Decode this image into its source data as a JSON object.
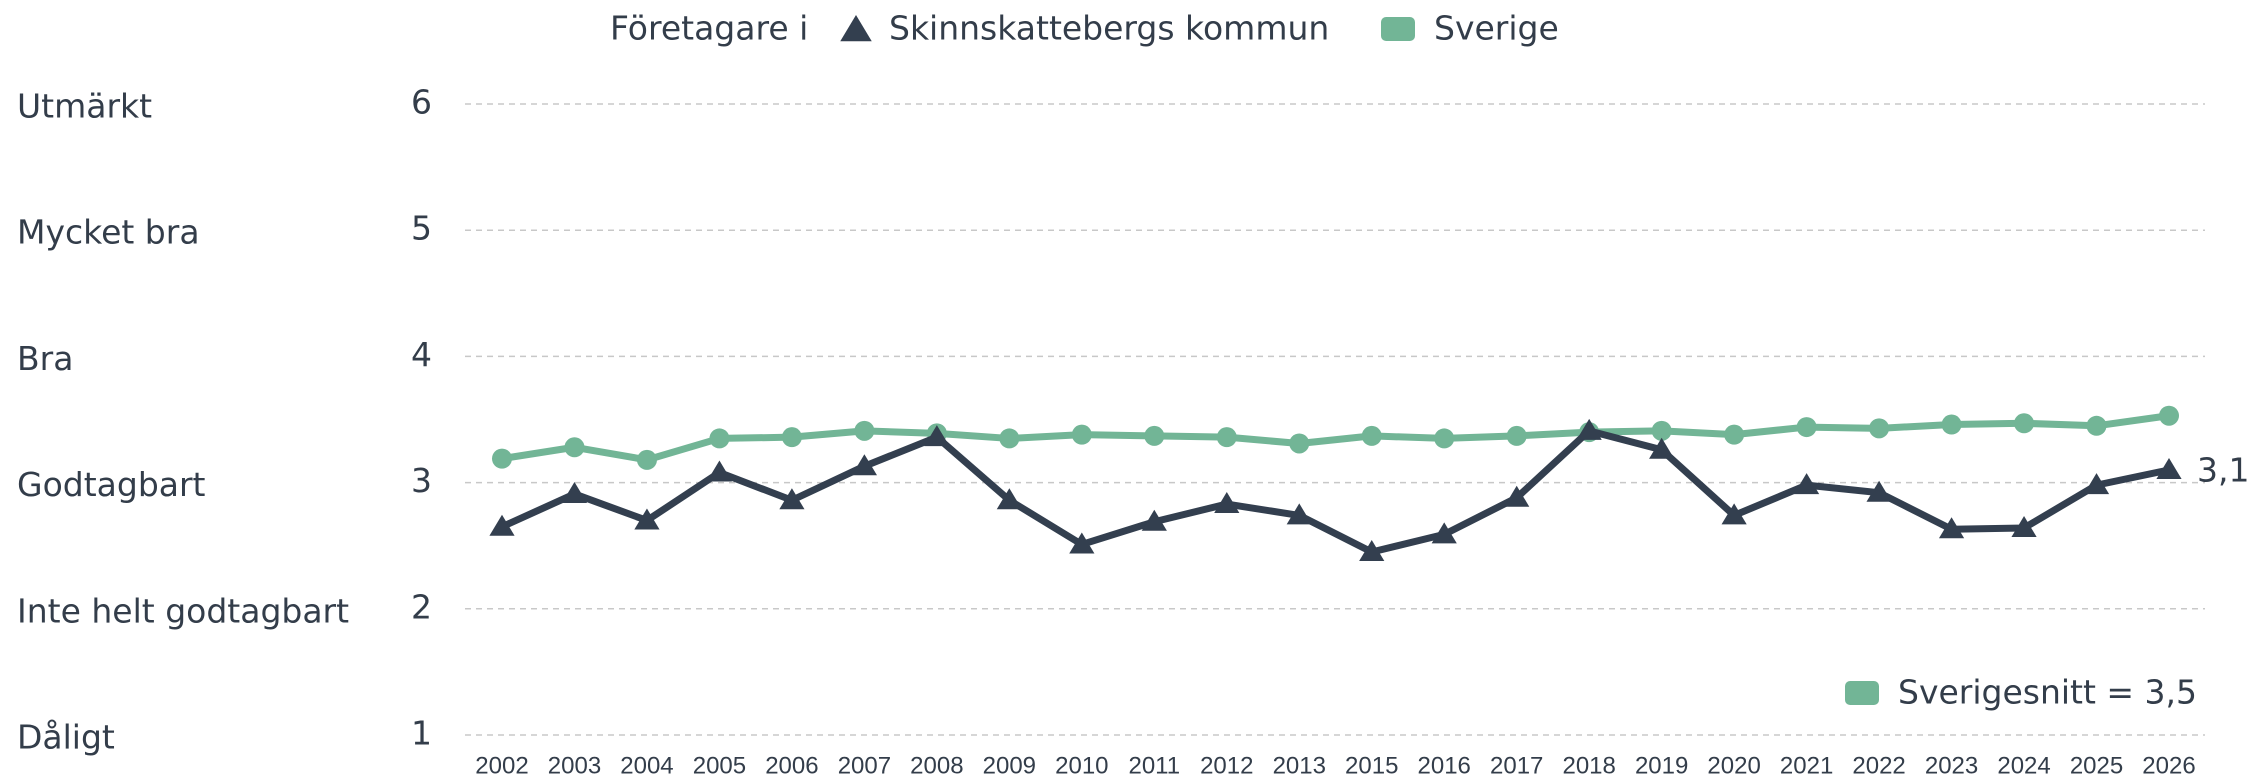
{
  "chart_data": {
    "type": "line",
    "legend_title": "Företagare i",
    "categories": [
      "2002",
      "2003",
      "2004",
      "2005",
      "2006",
      "2007",
      "2008",
      "2009",
      "2010",
      "2011",
      "2012",
      "2013",
      "2015",
      "2016",
      "2017",
      "2018",
      "2019",
      "2020",
      "2021",
      "2022",
      "2023",
      "2024",
      "2025",
      "2026"
    ],
    "series": [
      {
        "name": "Skinnskattebergs kommun",
        "color": "#333f4f",
        "marker": "triangle",
        "values": [
          2.65,
          2.91,
          2.7,
          3.08,
          2.86,
          3.13,
          3.36,
          2.86,
          2.51,
          2.69,
          2.83,
          2.74,
          2.45,
          2.59,
          2.88,
          3.41,
          3.26,
          2.74,
          2.98,
          2.92,
          2.63,
          2.64,
          2.98,
          3.1
        ],
        "end_label": "3,1"
      },
      {
        "name": "Sverige",
        "color": "#72b596",
        "marker": "circle",
        "values": [
          3.19,
          3.28,
          3.18,
          3.35,
          3.36,
          3.41,
          3.39,
          3.35,
          3.38,
          3.37,
          3.36,
          3.31,
          3.37,
          3.35,
          3.37,
          3.4,
          3.41,
          3.38,
          3.44,
          3.43,
          3.46,
          3.47,
          3.45,
          3.53
        ]
      }
    ],
    "ylim": [
      1,
      6
    ],
    "yticks": [
      1,
      2,
      3,
      4,
      5,
      6
    ],
    "ytick_names": [
      "Dåligt",
      "Inte helt godtagbart",
      "Godtagbart",
      "Bra",
      "Mycket bra",
      "Utmärkt"
    ],
    "grid": true,
    "annotation": {
      "text": "Sverigesnitt = 3,5",
      "value": 3.5,
      "color": "#72b596"
    }
  }
}
